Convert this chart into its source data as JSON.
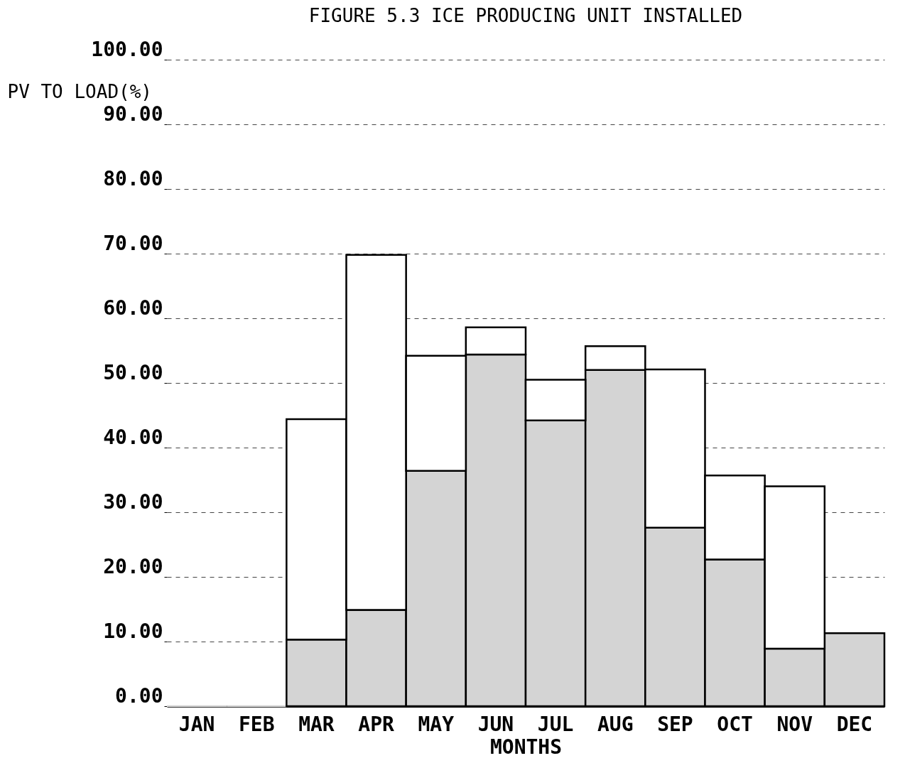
{
  "chart_data": {
    "type": "bar",
    "title": "FIGURE 5.3 ICE PRODUCING UNIT INSTALLED",
    "xlabel": "MONTHS",
    "ylabel": "PV TO LOAD(%)",
    "categories": [
      "JAN",
      "FEB",
      "MAR",
      "APR",
      "MAY",
      "JUN",
      "JUL",
      "AUG",
      "SEP",
      "OCT",
      "NOV",
      "DEC"
    ],
    "stacked": true,
    "series": [
      {
        "color": "#d4d4d4",
        "values": [
          0,
          0,
          10.3,
          14.9,
          36.4,
          54.4,
          44.2,
          52.0,
          27.6,
          22.7,
          8.9,
          11.3
        ]
      },
      {
        "color": "#ffffff",
        "values": [
          null,
          null,
          34.1,
          54.9,
          17.8,
          4.2,
          6.3,
          3.7,
          24.5,
          13.0,
          25.1,
          null
        ]
      }
    ],
    "ylim": [
      0,
      100
    ],
    "yticks": [
      {
        "value": 0,
        "label": "0.00"
      },
      {
        "value": 10,
        "label": "10.00"
      },
      {
        "value": 20,
        "label": "20.00"
      },
      {
        "value": 30,
        "label": "30.00"
      },
      {
        "value": 40,
        "label": "40.00"
      },
      {
        "value": 50,
        "label": "50.00"
      },
      {
        "value": 60,
        "label": "60.00"
      },
      {
        "value": 70,
        "label": "70.00"
      },
      {
        "value": 80,
        "label": "80.00"
      },
      {
        "value": 90,
        "label": "90.00"
      },
      {
        "value": 100,
        "label": "100.00"
      }
    ],
    "grid": "y"
  }
}
